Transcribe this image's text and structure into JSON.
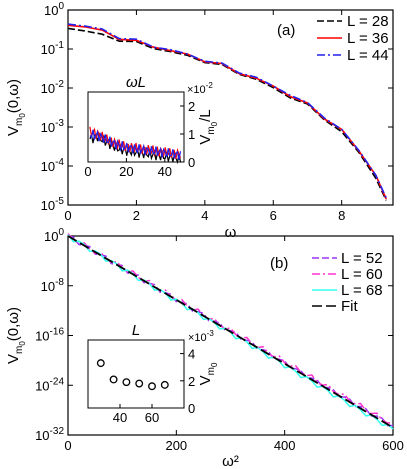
{
  "chart_data": [
    {
      "panel": "(a)",
      "type": "line",
      "xlabel": "ω",
      "ylabel": "V_{m0}(0,ω)",
      "xlim": [
        0,
        9.5
      ],
      "ylim": [
        1e-05,
        1
      ],
      "yscale": "log",
      "x_ticks": [
        "0",
        "2",
        "4",
        "6",
        "8"
      ],
      "y_ticks": [
        "10^-5",
        "10^-4",
        "10^-3",
        "10^-2",
        "10^-1",
        "10^0"
      ],
      "legend": "top-right",
      "series": [
        {
          "name": "L = 28",
          "color": "#000000",
          "dash": "7,3",
          "x": [
            0,
            0.5,
            1,
            1.5,
            2,
            2.5,
            3,
            3.5,
            4,
            4.5,
            5,
            5.5,
            6,
            6.5,
            7,
            7.5,
            8,
            8.5,
            9,
            9.3
          ],
          "y": [
            0.35,
            0.3,
            0.22,
            0.18,
            0.14,
            0.11,
            0.085,
            0.065,
            0.05,
            0.036,
            0.025,
            0.016,
            0.01,
            0.006,
            0.0035,
            0.0017,
            0.0007,
            0.00023,
            5e-05,
            1.2e-05
          ]
        },
        {
          "name": "L = 36",
          "color": "#ff0000",
          "dash": "",
          "x": [
            0,
            0.5,
            1,
            1.5,
            2,
            2.5,
            3,
            3.5,
            4,
            4.5,
            5,
            5.5,
            6,
            6.5,
            7,
            7.5,
            8,
            8.5,
            9,
            9.3
          ],
          "y": [
            0.42,
            0.38,
            0.28,
            0.2,
            0.15,
            0.12,
            0.09,
            0.07,
            0.052,
            0.038,
            0.026,
            0.017,
            0.011,
            0.0065,
            0.0037,
            0.0018,
            0.0008,
            0.00025,
            6e-05,
            1.3e-05
          ]
        },
        {
          "name": "L = 44",
          "color": "#2222ee",
          "dash": "8,3,2,3",
          "x": [
            0,
            0.5,
            1,
            1.5,
            2,
            2.5,
            3,
            3.5,
            4,
            4.5,
            5,
            5.5,
            6,
            6.5,
            7,
            7.5,
            8,
            8.5,
            9,
            9.3
          ],
          "y": [
            0.45,
            0.4,
            0.3,
            0.21,
            0.16,
            0.12,
            0.095,
            0.07,
            0.054,
            0.039,
            0.027,
            0.018,
            0.011,
            0.007,
            0.0038,
            0.0019,
            0.0008,
            0.00026,
            6e-05,
            1.4e-05
          ]
        }
      ],
      "inset": {
        "xlabel": "ωL",
        "ylabel": "V_{m0}/L",
        "xlim": [
          0,
          50
        ],
        "ylim": [
          0,
          0.025
        ],
        "x_ticks": [
          "0",
          "20",
          "40"
        ],
        "y_ticks": [
          "0",
          "1",
          "2"
        ],
        "multiplier": "×10^-2",
        "series": [
          {
            "name": "L = 28",
            "x": [
              0,
              5,
              10,
              15,
              20,
              25,
              30,
              35,
              40,
              45,
              48
            ],
            "y": [
              0.008,
              0.009,
              0.007,
              0.005,
              0.004,
              0.0035,
              0.003,
              0.0025,
              0.002,
              0.0015,
              0.001
            ]
          },
          {
            "name": "L = 36",
            "x": [
              0,
              5,
              10,
              15,
              20,
              25,
              30,
              35,
              40,
              45,
              48
            ],
            "y": [
              0.011,
              0.01,
              0.008,
              0.0065,
              0.0055,
              0.005,
              0.0045,
              0.004,
              0.0035,
              0.003,
              0.0028
            ]
          },
          {
            "name": "L = 44",
            "x": [
              0,
              5,
              10,
              15,
              20,
              25,
              30,
              35,
              40,
              45,
              48
            ],
            "y": [
              0.01,
              0.0095,
              0.0078,
              0.0062,
              0.0052,
              0.0047,
              0.0042,
              0.0038,
              0.0033,
              0.0028,
              0.0025
            ]
          }
        ]
      }
    },
    {
      "panel": "(b)",
      "type": "line",
      "xlabel": "ω²",
      "ylabel": "V_{m0}(0,ω)",
      "xlim": [
        0,
        600
      ],
      "ylim": [
        -32,
        0
      ],
      "yscale": "log",
      "x_ticks": [
        "0",
        "200",
        "400",
        "600"
      ],
      "y_ticks": [
        "10^-32",
        "10^-24",
        "10^-16",
        "10^-8",
        "10^0"
      ],
      "legend": "top-right",
      "series": [
        {
          "name": "L = 52",
          "color": "#9933ff",
          "dash": "7,3",
          "x": [
            0,
            100,
            200,
            300,
            400,
            500,
            600
          ],
          "y": [
            0,
            -5.1,
            -10.2,
            -15.3,
            -20.4,
            -25.5,
            -30.6
          ]
        },
        {
          "name": "L = 60",
          "color": "#ff33cc",
          "dash": "8,3,2,3",
          "x": [
            0,
            100,
            200,
            300,
            400,
            500,
            600
          ],
          "y": [
            0,
            -5.0,
            -10.1,
            -15.2,
            -20.2,
            -25.3,
            -30.4
          ]
        },
        {
          "name": "L = 68",
          "color": "#33ffee",
          "dash": "",
          "x": [
            0,
            100,
            200,
            300,
            400,
            500,
            600
          ],
          "y": [
            0,
            -5.2,
            -10.4,
            -15.6,
            -20.8,
            -26.0,
            -31.1
          ]
        },
        {
          "name": "Fit",
          "color": "#000000",
          "dash": "10,4",
          "x": [
            0,
            600
          ],
          "y": [
            0,
            -30.8
          ]
        }
      ],
      "inset": {
        "xlabel": "L",
        "ylabel": "V_{m0}",
        "xlim": [
          20,
          80
        ],
        "ylim": [
          0,
          0.005
        ],
        "x_ticks": [
          "40",
          "60"
        ],
        "y_ticks": [
          "0",
          "2",
          "4"
        ],
        "multiplier": "×10^-3",
        "points": {
          "x": [
            28,
            36,
            44,
            52,
            60,
            68
          ],
          "y": [
            0.0033,
            0.0021,
            0.0019,
            0.0018,
            0.0016,
            0.0017
          ]
        }
      }
    }
  ]
}
